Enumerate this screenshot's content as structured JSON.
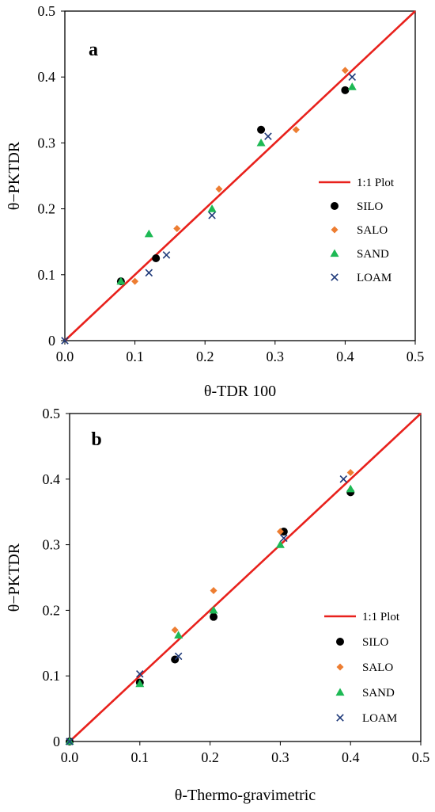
{
  "charts": [
    {
      "panel_label": "a",
      "chart_data": {
        "type": "scatter",
        "xlabel": "θ-TDR 100",
        "ylabel": "θ−PKTDR",
        "xlim": [
          0,
          0.5
        ],
        "ylim": [
          0,
          0.5
        ],
        "x_ticks": [
          "0.0",
          "0.1",
          "0.2",
          "0.3",
          "0.4",
          "0.5"
        ],
        "y_ticks": [
          "0",
          "0.1",
          "0.2",
          "0.3",
          "0.4",
          "0.5"
        ],
        "grid": false,
        "legend_position": "right",
        "reference_line": {
          "label": "1:1 Plot",
          "color": "#e8211c",
          "from": [
            0,
            0
          ],
          "to": [
            0.5,
            0.5
          ]
        },
        "series": [
          {
            "name": "SILO",
            "marker": "circle",
            "color": "#000000",
            "points": [
              [
                0.08,
                0.09
              ],
              [
                0.13,
                0.125
              ],
              [
                0.28,
                0.32
              ],
              [
                0.4,
                0.38
              ]
            ]
          },
          {
            "name": "SALO",
            "marker": "diamond",
            "color": "#ed7d31",
            "points": [
              [
                0.1,
                0.09
              ],
              [
                0.16,
                0.17
              ],
              [
                0.22,
                0.23
              ],
              [
                0.33,
                0.32
              ],
              [
                0.4,
                0.41
              ]
            ]
          },
          {
            "name": "SAND",
            "marker": "triangle",
            "color": "#1db954",
            "points": [
              [
                0.08,
                0.09
              ],
              [
                0.12,
                0.162
              ],
              [
                0.21,
                0.2
              ],
              [
                0.28,
                0.3
              ],
              [
                0.41,
                0.385
              ]
            ]
          },
          {
            "name": "LOAM",
            "marker": "cross",
            "color": "#1f3a7a",
            "points": [
              [
                0.0,
                0.0
              ],
              [
                0.12,
                0.103
              ],
              [
                0.145,
                0.13
              ],
              [
                0.21,
                0.19
              ],
              [
                0.29,
                0.31
              ],
              [
                0.41,
                0.4
              ]
            ]
          }
        ]
      }
    },
    {
      "panel_label": "b",
      "chart_data": {
        "type": "scatter",
        "xlabel": "θ-Thermo-gravimetric",
        "ylabel": "θ−PKTDR",
        "xlim": [
          0,
          0.5
        ],
        "ylim": [
          0,
          0.5
        ],
        "x_ticks": [
          "0.0",
          "0.1",
          "0.2",
          "0.3",
          "0.4",
          "0.5"
        ],
        "y_ticks": [
          "0",
          "0.1",
          "0.2",
          "0.3",
          "0.4",
          "0.5"
        ],
        "grid": false,
        "legend_position": "bottom-right",
        "reference_line": {
          "label": "1:1 Plot",
          "color": "#e8211c",
          "from": [
            0,
            0
          ],
          "to": [
            0.5,
            0.5
          ]
        },
        "series": [
          {
            "name": "SILO",
            "marker": "circle",
            "color": "#000000",
            "points": [
              [
                0.0,
                0.0
              ],
              [
                0.1,
                0.09
              ],
              [
                0.15,
                0.125
              ],
              [
                0.205,
                0.19
              ],
              [
                0.305,
                0.32
              ],
              [
                0.4,
                0.38
              ]
            ]
          },
          {
            "name": "SALO",
            "marker": "diamond",
            "color": "#ed7d31",
            "points": [
              [
                0.15,
                0.17
              ],
              [
                0.205,
                0.23
              ],
              [
                0.3,
                0.32
              ],
              [
                0.4,
                0.41
              ]
            ]
          },
          {
            "name": "SAND",
            "marker": "triangle",
            "color": "#1db954",
            "points": [
              [
                0.0,
                0.0
              ],
              [
                0.1,
                0.088
              ],
              [
                0.155,
                0.162
              ],
              [
                0.205,
                0.2
              ],
              [
                0.3,
                0.3
              ],
              [
                0.4,
                0.385
              ]
            ]
          },
          {
            "name": "LOAM",
            "marker": "cross",
            "color": "#1f3a7a",
            "points": [
              [
                0.0,
                0.0
              ],
              [
                0.1,
                0.103
              ],
              [
                0.155,
                0.13
              ],
              [
                0.305,
                0.31
              ],
              [
                0.39,
                0.4
              ]
            ]
          }
        ]
      }
    }
  ]
}
